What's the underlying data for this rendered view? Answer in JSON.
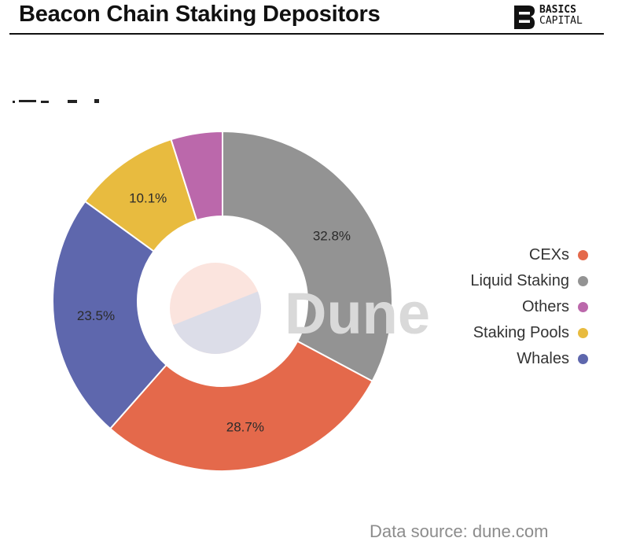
{
  "header": {
    "title": "Beacon Chain Staking Depositors",
    "logo_line1": "BASICS",
    "logo_line2": "CAPITAL"
  },
  "watermark": "Dune",
  "footer": {
    "source": "Data source: dune.com"
  },
  "colors": {
    "CEXs": "#e4694b",
    "Liquid Staking": "#939393",
    "Others": "#bb68ab",
    "Staking Pools": "#e8bb3f",
    "Whales": "#5e67ad"
  },
  "chart_data": {
    "type": "pie",
    "donut": true,
    "slices": [
      {
        "label": "Liquid Staking",
        "value": 32.8,
        "display": "32.8%"
      },
      {
        "label": "CEXs",
        "value": 28.7,
        "display": "28.7%"
      },
      {
        "label": "Whales",
        "value": 23.5,
        "display": "23.5%"
      },
      {
        "label": "Staking Pools",
        "value": 10.1,
        "display": "10.1%"
      },
      {
        "label": "Others",
        "value": 4.9,
        "display": ""
      }
    ],
    "legend": [
      "CEXs",
      "Liquid Staking",
      "Others",
      "Staking Pools",
      "Whales"
    ],
    "legend_position": "right"
  }
}
